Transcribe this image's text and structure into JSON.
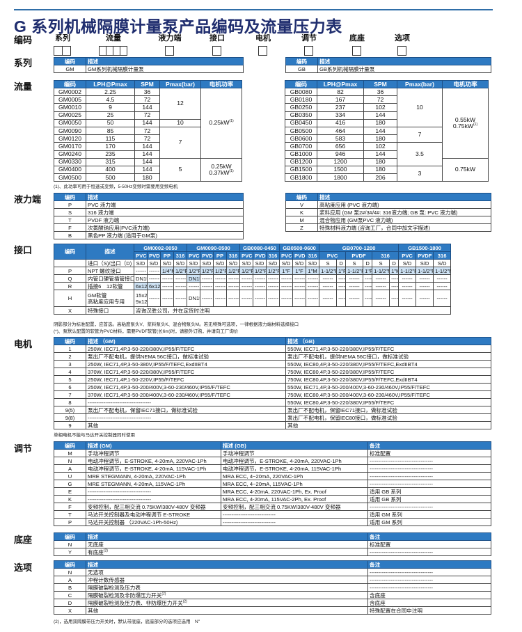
{
  "title": "G 系列机械隔膜计量泵产品编码及流量压力表",
  "code_row": {
    "label": "编码",
    "fields": [
      {
        "label": "系列",
        "digits": 2
      },
      {
        "label": "流量",
        "digits": 4
      },
      {
        "label": "液力端",
        "digits": 1
      },
      {
        "label": "接口",
        "digits": 1
      },
      {
        "label": "电机",
        "digits": 1
      },
      {
        "label": "调节",
        "digits": 1
      },
      {
        "label": "底座",
        "digits": 1
      },
      {
        "label": "选项",
        "digits": 1
      }
    ]
  },
  "colors": {
    "header_blue": "#2e7ac2",
    "highlight": "#cfe3f5",
    "title": "#1f2d6e"
  },
  "sections": {
    "series": "系列",
    "flow": "流量",
    "liquid_end": "液力端",
    "interface": "接口",
    "motor": "电机",
    "control": "调节",
    "base": "底座",
    "options": "选项"
  },
  "series_gm": {
    "header": [
      "编码",
      "描述"
    ],
    "rows": [
      [
        "GM",
        "GM系列机械隔膜计量泵"
      ]
    ]
  },
  "series_gb": {
    "header": [
      "编码",
      "描述"
    ],
    "rows": [
      [
        "GB",
        "GB系列机械隔膜计量泵"
      ]
    ]
  },
  "flow_gm": {
    "header": [
      "编码",
      "LPH@Pmax",
      "SPM",
      "Pmax(bar)",
      "电机功率"
    ],
    "rows": [
      [
        "GM0002",
        "2.25",
        "36",
        {
          "v": "12",
          "rs": 4
        },
        {
          "v": "0.25kW",
          "sup": "(1)",
          "rs": 9
        }
      ],
      [
        "GM0005",
        "4.5",
        "72"
      ],
      [
        "GM0010",
        "9",
        "144"
      ],
      [
        "GM0025",
        "25",
        "72"
      ],
      [
        "GM0050",
        "50",
        "144",
        "10"
      ],
      [
        "GM0090",
        "85",
        "72",
        {
          "v": "7",
          "rs": 4
        }
      ],
      [
        "GM0120",
        "115",
        "72"
      ],
      [
        "GM0170",
        "170",
        "144"
      ],
      [
        "GM0240",
        "235",
        "144"
      ],
      [
        "GM0330",
        "315",
        "144",
        {
          "v": "5",
          "rs": 3
        },
        {
          "v": "0.25kW\n0.37kW",
          "sup": "(1)",
          "rs": 3
        }
      ],
      [
        "GM0400",
        "400",
        "144"
      ],
      [
        "GM0500",
        "500",
        "180"
      ]
    ]
  },
  "flow_gb": {
    "header": [
      "编码",
      "LPH@Pmax",
      "SPM",
      "Pmax(bar)",
      "电机功率"
    ],
    "rows": [
      [
        "GB0080",
        "82",
        "36",
        {
          "v": "10",
          "rs": 5
        },
        {
          "v": "0.55kW\n0.75kW",
          "sup": "(1)",
          "rs": 9
        }
      ],
      [
        "GB0180",
        "167",
        "72"
      ],
      [
        "GB0250",
        "237",
        "102"
      ],
      [
        "GB0350",
        "334",
        "144"
      ],
      [
        "GB0450",
        "416",
        "180"
      ],
      [
        "GB0500",
        "464",
        "144",
        {
          "v": "7",
          "rs": 2
        }
      ],
      [
        "GB0600",
        "583",
        "180"
      ],
      [
        "GB0700",
        "656",
        "102",
        {
          "v": "3.5",
          "rs": 3
        }
      ],
      [
        "GB1000",
        "946",
        "144"
      ],
      [
        "GB1200",
        "1200",
        "180",
        {
          "v": "0.75kW",
          "rs": 3
        }
      ],
      [
        "GB1500",
        "1500",
        "180",
        {
          "v": "3",
          "rs": 2
        }
      ],
      [
        "GB1800",
        "1800",
        "206"
      ]
    ]
  },
  "flow_note": "(1)、此功率可用于恒速或变频，5-50Hz变频时需要用变频电机",
  "liquid_left": {
    "header": [
      "编码",
      "描述"
    ],
    "rows": [
      [
        "P",
        "PVC 液力端"
      ],
      [
        "S",
        "316 液力端"
      ],
      [
        "T",
        "PVDF 液力端"
      ],
      [
        "F",
        "次氯酸钠应用(PVC液力端)"
      ],
      [
        "B",
        "黑色PP 液力端 (适用于GM泵)"
      ]
    ]
  },
  "liquid_right": {
    "header": [
      "编码",
      "描述"
    ],
    "rows": [
      [
        "V",
        "高粘度应用 (PVC 液力端)"
      ],
      [
        "K",
        "浆料应用 (GM 泵2#/3#/4#: 316液力端; GB 泵: PVC 液力端)"
      ],
      [
        "M",
        "混合物应用 (GM泵PVC 液力端)"
      ],
      [
        "Z",
        "特殊材料液力端 (咨询工厂，合同中加文字描述)"
      ]
    ]
  },
  "interface": {
    "head1": [
      {
        "v": "编码",
        "rs": 2
      },
      {
        "v": "描述",
        "rs": 2
      },
      {
        "v": "GM0002-0050",
        "cs": 4
      },
      {
        "v": "GM0090-0500",
        "cs": 4
      },
      {
        "v": "GB0080-0450",
        "cs": 3
      },
      {
        "v": "GB0500-0600",
        "cs": 3
      },
      {
        "v": "GB0700-1200",
        "cs": 6
      },
      {
        "v": "GB1500-1800",
        "cs": 3
      }
    ],
    "head2": [
      "PVC",
      "PVDF",
      "PP",
      "316",
      "PVC",
      "PVDF",
      "PP",
      "316",
      "PVC",
      "PVDF",
      "316",
      "PVC",
      "PVDF",
      "316",
      {
        "v": "PVC",
        "cs": 2
      },
      {
        "v": "PVDF",
        "cs": 2
      },
      {
        "v": "316",
        "cs": 2
      },
      "PVC",
      "PVDF",
      "316"
    ],
    "rows": [
      [
        "",
        "进口（S)/出口（D)",
        "S/D",
        "S/D",
        "S/D",
        "S/D",
        "S/D",
        "S/D",
        "S/D",
        "S/D",
        "S/D",
        "S/D",
        "S/D",
        "S/D",
        "S/D",
        "S/D",
        "S",
        "D",
        "S",
        "D",
        "S",
        "D",
        "S/D",
        "S/D",
        "S/D"
      ],
      [
        "P",
        "NPT 螺纹接口",
        "------",
        "------",
        {
          "v": "1/4\"M",
          "hl": 1
        },
        {
          "v": "1/2\"F",
          "hl": 1
        },
        {
          "v": "1/2\"F",
          "hl": 1
        },
        {
          "v": "1/2\"F",
          "hl": 1
        },
        {
          "v": "1/2\"F",
          "hl": 1
        },
        {
          "v": "1/2\"F",
          "hl": 1
        },
        {
          "v": "1/2\"F",
          "hl": 1
        },
        {
          "v": "1/2\"F",
          "hl": 1
        },
        {
          "v": "1/2\"F",
          "hl": 1
        },
        {
          "v": "1\"F",
          "hl": 1
        },
        {
          "v": "1\"F",
          "hl": 1
        },
        {
          "v": "1\"M",
          "hl": 1
        },
        {
          "v": "1-1/2\"F",
          "hl": 1
        },
        {
          "v": "1\"F",
          "hl": 1
        },
        {
          "v": "1-1/2\"F",
          "hl": 1
        },
        {
          "v": "1\"F",
          "hl": 1
        },
        {
          "v": "1-1/2\"M",
          "hl": 1
        },
        {
          "v": "1\"M",
          "hl": 1
        },
        {
          "v": "1-1/2\"F",
          "hl": 1
        },
        {
          "v": "1-1/2\"F",
          "hl": 1
        },
        {
          "v": "1-1/2\"M",
          "hl": 1
        }
      ],
      [
        "Q",
        "内管口硬管插管接口",
        "DN15",
        "------",
        "------",
        "------",
        {
          "v": "DN15",
          "hl": 1
        },
        "------",
        "------",
        "------",
        "------",
        "------",
        "------",
        "------",
        "------",
        "------",
        "------",
        "------",
        "------",
        "------",
        "------",
        "------",
        "------",
        "------",
        "------"
      ],
      [
        "R",
        "插接6　12软管",
        {
          "v": "6x12",
          "hl": 1
        },
        {
          "v": "6x12",
          "sup": "(*)",
          "hl": 1
        },
        "------",
        "------",
        "------",
        "------",
        "------",
        "------",
        "------",
        "------",
        "------",
        "------",
        "------",
        "------",
        "------",
        "------",
        "------",
        "------",
        "------",
        "------",
        "------",
        "------",
        "------"
      ],
      [
        "H",
        "GM软管\n高粘度应用专用",
        "15x23\n9x12",
        "------",
        "------",
        "------",
        "DN15",
        "------",
        "------",
        "------",
        "------",
        "------",
        "------",
        "------",
        "------",
        "------",
        "------",
        "------",
        "------",
        "------",
        "------",
        "------",
        "------",
        "------",
        "------"
      ],
      [
        "X",
        "特殊接口",
        {
          "v": "咨询汉胜公司，并在定货时注明",
          "cs": 23,
          "left": 1
        }
      ]
    ]
  },
  "interface_notes": [
    "阴影部分为标准配置，应首选。高粘度泵头V、浆料泵头K、混合物泵头M。若无特殊可选项，一律根据液力端材料选择接口",
    "(*)、泵默认配置的软管为PVC材料，需要PVDF软管(长6m)时，请额外订购，并请向工厂询价"
  ],
  "motor": {
    "header": [
      "编码",
      "描述 （GM)",
      "描述 （GB)"
    ],
    "rows": [
      [
        "1",
        "250W, IEC71,4P,3-50-220/380V,IP55/F/TEFC",
        "550W, IEC71,4P,3-50-220/380V,IP55/F/TEFC"
      ],
      [
        "2",
        "泵出厂不配电机，提供NEMA 56C接口，做标准试验",
        "泵出厂不配电机，提供NEMA 56C接口，做标准试验"
      ],
      [
        "3",
        "250W, IEC71,4P,3-50-380V,IP55/F/TEFC,ExdIIBT4",
        "550W, IEC80,4P,3-50-220/380V,IP55/F/TEFC,ExdIIBT4"
      ],
      [
        "4",
        "370W, IEC71,4P,3-50-220/380V,IP55/F/TEFC",
        "750W, IEC80,4P,3-50-220/380V,IP55/F/TEFC"
      ],
      [
        "5",
        "250W, IEC71,4P,1-50-220V,IP55/F/TEFC",
        "750W, IEC80,4P,3-50-220/380V,IP55/F/TEFC,ExdIIBT4"
      ],
      [
        "6",
        "250W, IEC71,4P,3-50-200/400V,3-60-230/460V,IP55/F/TEFC",
        "550W, IEC71,4P,3-50-200/400V,3-60-230/460V,IP55/F/TEFC"
      ],
      [
        "7",
        "370W, IEC71,4P,3-50-200/400V,3-60-230/460V,IP55/F/TEFC",
        "750W, IEC80,4P,3-50-200/400V,3-60-230/460V,IP55/F/TEFC"
      ],
      [
        "8",
        "------------------------------------",
        "550W, IEC80,4P,3-50-220/380V,IP55/F/TEFC"
      ],
      [
        "9(5)",
        "泵出厂不配电机，保留IEC71接口，做标准试验",
        "泵出厂不配电机，保留IEC71接口，做标准试验"
      ],
      [
        "9(8)",
        "------------------------------------",
        "泵出厂不配电机，保留IEC80接口，做标准试验"
      ],
      [
        "9",
        "其他",
        "其他"
      ]
    ]
  },
  "motor_note": "单相电机不能与马达开关控制器同时使用",
  "control": {
    "header": [
      "编码",
      "描述 (GM)",
      "描述 (GB)",
      "备注"
    ],
    "rows": [
      [
        "M",
        "手动冲程调节",
        "手动冲程调节",
        "标准配置"
      ],
      [
        "N",
        "电动冲程调节，E-STROKE, 4-20mA, 220VAC-1Ph",
        "电动冲程调节，E-STROKE, 4-20mA, 220VAC-1Ph",
        "------------------------------------"
      ],
      [
        "A",
        "电动冲程调节，E-STROKE, 4-20mA, 115VAC-1Ph",
        "电动冲程调节，E-STROKE, 4-20mA, 115VAC-1Ph",
        "------------------------------------"
      ],
      [
        "U",
        "MRE STEGMANN, 4-20mA, 220VAC-1Ph",
        "MRA ECC, 4~20mA, 220VAC-1Ph",
        "------------------------------------"
      ],
      [
        "G",
        "MRE STEGMANN, 4-20mA, 115VAC-1Ph",
        "MRA ECC, 4~20mA, 115VAC-1Ph",
        "------------------------------------"
      ],
      [
        "E",
        "------------------------------------",
        "MRA ECC, 4-20mA, 220VAC-1Ph, Ex. Proof",
        "适用 GB 系列"
      ],
      [
        "K",
        "------------------------------------",
        "MRA ECC, 4-20mA, 115VAC-2Ph, Ex. Proof",
        "适用 GB 系列"
      ],
      [
        "F",
        "变频控制，配三相交流 0.75KW/380V-480V 变频器",
        "变频控制，配三相交流 0.75KW/380V-480V 变频器",
        "------------------------------------"
      ],
      [
        "T",
        "马达开关控制器及电动冲程调节 E-STROKE",
        "------------------------------",
        "适用 GM 系列"
      ],
      [
        "P",
        "马达开关控制器 （220VAC-1Ph-50Hz)",
        "------------------------------",
        "适用 GM 系列"
      ]
    ]
  },
  "base": {
    "header": [
      "编码",
      "描述",
      "备注"
    ],
    "rows": [
      [
        "N",
        "无底座",
        "标准配置"
      ],
      [
        "Y",
        {
          "v": "有底座",
          "sup": "(2)"
        },
        "------------------------------------"
      ]
    ]
  },
  "options": {
    "header": [
      "编码",
      "描述",
      "备注"
    ],
    "rows": [
      [
        "N",
        "无选项",
        "------------------------------------"
      ],
      [
        "A",
        "冲程计数传感器",
        "------------------------------------"
      ],
      [
        "B",
        "隔膜破裂检测及压力表",
        "------------------------------------"
      ],
      [
        "C",
        {
          "v": "隔膜破裂检测及非防爆压力开关",
          "sup": "(2)"
        },
        "含底座"
      ],
      [
        "D",
        {
          "v": "隔膜破裂检测及压力表、非防爆压力开关",
          "sup": "(2)"
        },
        "含底座"
      ],
      [
        "X",
        "其他",
        "特殊配置在合同中注明"
      ]
    ]
  },
  "options_note": "(2)，选用双隔膜带压力开关时，默认带底座，底座部分的选项应选用　N\""
}
